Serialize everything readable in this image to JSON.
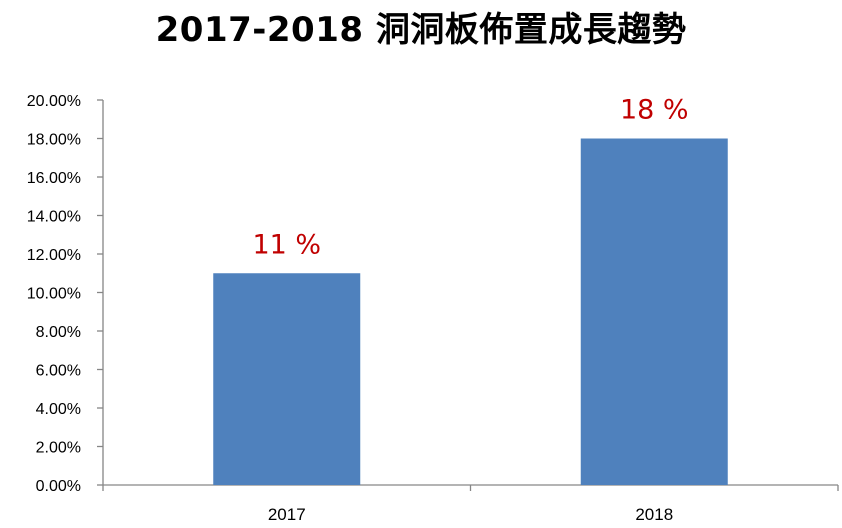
{
  "chart_data": {
    "type": "bar",
    "title": "2017-2018 洞洞板佈置成長趨勢",
    "xlabel": "",
    "ylabel": "",
    "categories": [
      "2017",
      "2018"
    ],
    "values": [
      11,
      18
    ],
    "data_labels": [
      "11 %",
      "18 %"
    ],
    "ylim": [
      0,
      20
    ],
    "yticks": [
      "0.00%",
      "2.00%",
      "4.00%",
      "6.00%",
      "8.00%",
      "10.00%",
      "12.00%",
      "14.00%",
      "16.00%",
      "18.00%",
      "20.00%"
    ],
    "grid": false,
    "legend": "none",
    "bar_color": "#4F81BD",
    "data_label_color": "#C00000",
    "axis_color": "#868686"
  }
}
